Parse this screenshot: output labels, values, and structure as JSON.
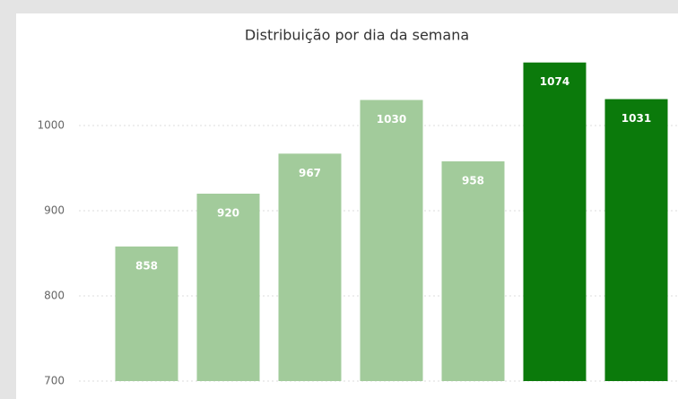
{
  "chart_data": {
    "type": "bar",
    "title": "Distribuição por dia da semana",
    "categories": [
      null,
      null,
      null,
      null,
      null,
      null,
      null
    ],
    "values": [
      858,
      920,
      967,
      1030,
      958,
      1074,
      1031
    ],
    "colors": [
      "#a2cb9b",
      "#a2cb9b",
      "#a2cb9b",
      "#a2cb9b",
      "#a2cb9b",
      "#0b7a0b",
      "#0b7a0b"
    ],
    "ylim": [
      700,
      1100
    ],
    "yticks": [
      700,
      800,
      900,
      1000
    ],
    "grid": true
  }
}
